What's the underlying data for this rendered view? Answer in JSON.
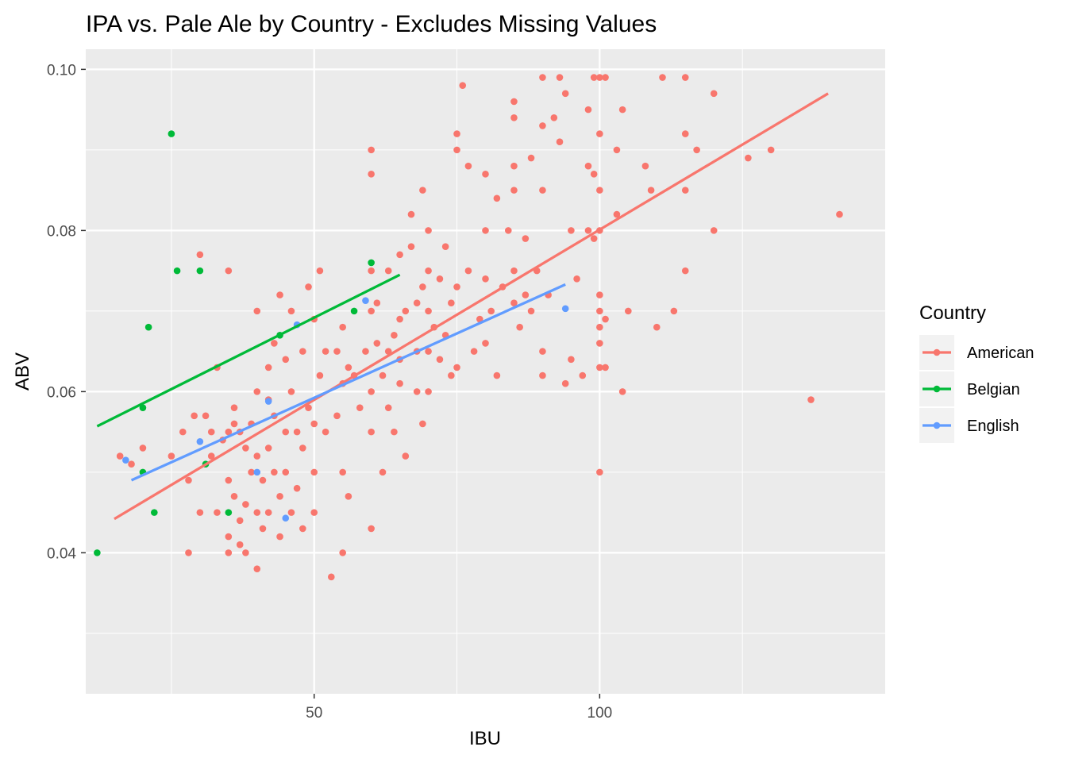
{
  "chart_data": {
    "type": "scatter",
    "title": "IPA vs. Pale Ale by Country - Excludes Missing Values",
    "xlabel": "IBU",
    "ylabel": "ABV",
    "xlim": [
      10,
      150
    ],
    "ylim": [
      0.0225,
      0.1025
    ],
    "x_ticks": [
      50,
      100
    ],
    "x_tick_labels": [
      "50",
      "100"
    ],
    "y_ticks": [
      0.04,
      0.06,
      0.08,
      0.1
    ],
    "y_tick_labels": [
      "0.04",
      "0.06",
      "0.08",
      "0.10"
    ],
    "grid": true,
    "legend": {
      "title": "Country",
      "placement": "right"
    },
    "colors": {
      "American": "#F8766D",
      "Belgian": "#00BA38",
      "English": "#619CFF",
      "panel": "#EBEBEB",
      "grid": "#FFFFFF"
    },
    "series": [
      {
        "name": "American",
        "points": [
          [
            16,
            0.052
          ],
          [
            18,
            0.051
          ],
          [
            20,
            0.053
          ],
          [
            25,
            0.052
          ],
          [
            27,
            0.055
          ],
          [
            28,
            0.049
          ],
          [
            28,
            0.04
          ],
          [
            29,
            0.057
          ],
          [
            30,
            0.045
          ],
          [
            30,
            0.077
          ],
          [
            31,
            0.057
          ],
          [
            32,
            0.055
          ],
          [
            32,
            0.052
          ],
          [
            33,
            0.045
          ],
          [
            33,
            0.063
          ],
          [
            34,
            0.054
          ],
          [
            35,
            0.04
          ],
          [
            35,
            0.042
          ],
          [
            35,
            0.075
          ],
          [
            35,
            0.055
          ],
          [
            35,
            0.049
          ],
          [
            36,
            0.047
          ],
          [
            36,
            0.056
          ],
          [
            36,
            0.058
          ],
          [
            37,
            0.044
          ],
          [
            37,
            0.041
          ],
          [
            37,
            0.055
          ],
          [
            38,
            0.046
          ],
          [
            38,
            0.04
          ],
          [
            38,
            0.053
          ],
          [
            39,
            0.056
          ],
          [
            39,
            0.05
          ],
          [
            40,
            0.07
          ],
          [
            40,
            0.06
          ],
          [
            40,
            0.052
          ],
          [
            40,
            0.045
          ],
          [
            40,
            0.038
          ],
          [
            41,
            0.049
          ],
          [
            41,
            0.043
          ],
          [
            42,
            0.063
          ],
          [
            42,
            0.059
          ],
          [
            42,
            0.053
          ],
          [
            42,
            0.045
          ],
          [
            43,
            0.066
          ],
          [
            43,
            0.057
          ],
          [
            43,
            0.05
          ],
          [
            44,
            0.042
          ],
          [
            44,
            0.047
          ],
          [
            44,
            0.072
          ],
          [
            45,
            0.055
          ],
          [
            45,
            0.064
          ],
          [
            45,
            0.05
          ],
          [
            46,
            0.07
          ],
          [
            46,
            0.06
          ],
          [
            46,
            0.045
          ],
          [
            47,
            0.055
          ],
          [
            47,
            0.048
          ],
          [
            48,
            0.065
          ],
          [
            48,
            0.053
          ],
          [
            48,
            0.043
          ],
          [
            49,
            0.058
          ],
          [
            49,
            0.073
          ],
          [
            50,
            0.069
          ],
          [
            50,
            0.056
          ],
          [
            50,
            0.05
          ],
          [
            50,
            0.045
          ],
          [
            51,
            0.075
          ],
          [
            51,
            0.062
          ],
          [
            52,
            0.065
          ],
          [
            52,
            0.055
          ],
          [
            53,
            0.037
          ],
          [
            54,
            0.057
          ],
          [
            54,
            0.065
          ],
          [
            55,
            0.061
          ],
          [
            55,
            0.05
          ],
          [
            55,
            0.04
          ],
          [
            55,
            0.068
          ],
          [
            56,
            0.063
          ],
          [
            56,
            0.047
          ],
          [
            57,
            0.062
          ],
          [
            58,
            0.058
          ],
          [
            59,
            0.065
          ],
          [
            60,
            0.09
          ],
          [
            60,
            0.087
          ],
          [
            60,
            0.075
          ],
          [
            60,
            0.07
          ],
          [
            60,
            0.06
          ],
          [
            60,
            0.055
          ],
          [
            60,
            0.043
          ],
          [
            61,
            0.071
          ],
          [
            61,
            0.066
          ],
          [
            62,
            0.05
          ],
          [
            62,
            0.062
          ],
          [
            63,
            0.075
          ],
          [
            63,
            0.065
          ],
          [
            63,
            0.058
          ],
          [
            64,
            0.067
          ],
          [
            64,
            0.055
          ],
          [
            65,
            0.077
          ],
          [
            65,
            0.069
          ],
          [
            65,
            0.064
          ],
          [
            65,
            0.061
          ],
          [
            66,
            0.07
          ],
          [
            66,
            0.052
          ],
          [
            67,
            0.082
          ],
          [
            67,
            0.078
          ],
          [
            68,
            0.071
          ],
          [
            68,
            0.065
          ],
          [
            68,
            0.06
          ],
          [
            69,
            0.085
          ],
          [
            69,
            0.073
          ],
          [
            69,
            0.056
          ],
          [
            70,
            0.08
          ],
          [
            70,
            0.075
          ],
          [
            70,
            0.07
          ],
          [
            70,
            0.065
          ],
          [
            70,
            0.06
          ],
          [
            71,
            0.068
          ],
          [
            72,
            0.074
          ],
          [
            72,
            0.064
          ],
          [
            73,
            0.078
          ],
          [
            73,
            0.067
          ],
          [
            74,
            0.062
          ],
          [
            74,
            0.071
          ],
          [
            75,
            0.092
          ],
          [
            75,
            0.09
          ],
          [
            75,
            0.073
          ],
          [
            75,
            0.063
          ],
          [
            76,
            0.098
          ],
          [
            77,
            0.088
          ],
          [
            77,
            0.075
          ],
          [
            78,
            0.065
          ],
          [
            79,
            0.069
          ],
          [
            80,
            0.087
          ],
          [
            80,
            0.08
          ],
          [
            80,
            0.074
          ],
          [
            80,
            0.066
          ],
          [
            81,
            0.07
          ],
          [
            82,
            0.062
          ],
          [
            82,
            0.084
          ],
          [
            83,
            0.073
          ],
          [
            84,
            0.08
          ],
          [
            85,
            0.096
          ],
          [
            85,
            0.094
          ],
          [
            85,
            0.088
          ],
          [
            85,
            0.085
          ],
          [
            85,
            0.075
          ],
          [
            85,
            0.071
          ],
          [
            86,
            0.068
          ],
          [
            87,
            0.079
          ],
          [
            87,
            0.072
          ],
          [
            88,
            0.089
          ],
          [
            88,
            0.07
          ],
          [
            89,
            0.075
          ],
          [
            90,
            0.099
          ],
          [
            90,
            0.093
          ],
          [
            90,
            0.085
          ],
          [
            90,
            0.065
          ],
          [
            90,
            0.062
          ],
          [
            91,
            0.072
          ],
          [
            92,
            0.094
          ],
          [
            93,
            0.099
          ],
          [
            93,
            0.091
          ],
          [
            94,
            0.097
          ],
          [
            94,
            0.061
          ],
          [
            95,
            0.08
          ],
          [
            95,
            0.064
          ],
          [
            96,
            0.074
          ],
          [
            97,
            0.062
          ],
          [
            98,
            0.095
          ],
          [
            98,
            0.088
          ],
          [
            98,
            0.08
          ],
          [
            99,
            0.087
          ],
          [
            99,
            0.079
          ],
          [
            99,
            0.099
          ],
          [
            100,
            0.099
          ],
          [
            100,
            0.092
          ],
          [
            100,
            0.085
          ],
          [
            100,
            0.08
          ],
          [
            100,
            0.072
          ],
          [
            100,
            0.07
          ],
          [
            100,
            0.068
          ],
          [
            100,
            0.066
          ],
          [
            100,
            0.063
          ],
          [
            100,
            0.05
          ],
          [
            101,
            0.099
          ],
          [
            101,
            0.063
          ],
          [
            101,
            0.069
          ],
          [
            103,
            0.09
          ],
          [
            103,
            0.082
          ],
          [
            104,
            0.095
          ],
          [
            104,
            0.06
          ],
          [
            105,
            0.07
          ],
          [
            108,
            0.088
          ],
          [
            109,
            0.085
          ],
          [
            110,
            0.068
          ],
          [
            111,
            0.099
          ],
          [
            113,
            0.07
          ],
          [
            115,
            0.099
          ],
          [
            115,
            0.092
          ],
          [
            115,
            0.085
          ],
          [
            115,
            0.075
          ],
          [
            117,
            0.09
          ],
          [
            120,
            0.097
          ],
          [
            120,
            0.08
          ],
          [
            126,
            0.089
          ],
          [
            130,
            0.09
          ],
          [
            137,
            0.059
          ],
          [
            142,
            0.082
          ]
        ],
        "fit": [
          [
            15,
            0.0442
          ],
          [
            140,
            0.097
          ]
        ]
      },
      {
        "name": "Belgian",
        "points": [
          [
            12,
            0.04
          ],
          [
            20,
            0.058
          ],
          [
            20,
            0.05
          ],
          [
            21,
            0.068
          ],
          [
            22,
            0.045
          ],
          [
            25,
            0.092
          ],
          [
            26,
            0.075
          ],
          [
            30,
            0.075
          ],
          [
            31,
            0.051
          ],
          [
            35,
            0.045
          ],
          [
            44,
            0.067
          ],
          [
            57,
            0.07
          ],
          [
            60,
            0.076
          ]
        ],
        "fit": [
          [
            12,
            0.0557
          ],
          [
            65,
            0.0745
          ]
        ]
      },
      {
        "name": "English",
        "points": [
          [
            17,
            0.0515
          ],
          [
            30,
            0.0538
          ],
          [
            40,
            0.05
          ],
          [
            42,
            0.0588
          ],
          [
            45,
            0.0443
          ],
          [
            47,
            0.0683
          ],
          [
            59,
            0.0713
          ],
          [
            94,
            0.0703
          ]
        ],
        "fit": [
          [
            18,
            0.049
          ],
          [
            94,
            0.0733
          ]
        ]
      }
    ]
  }
}
